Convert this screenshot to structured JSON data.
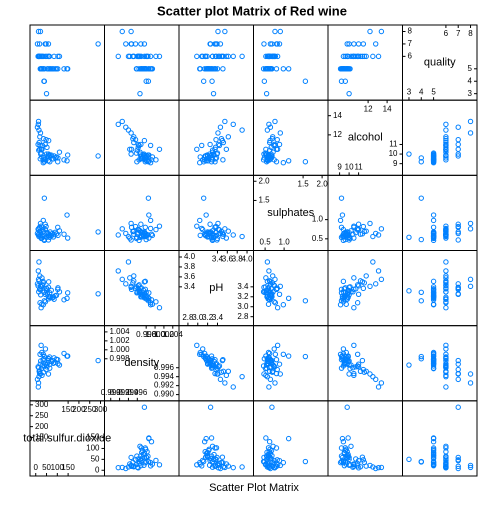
{
  "chart_data": {
    "type": "splom",
    "title": "Scatter plot Matrix of Red wine",
    "x_label": "Scatter Plot Matrix",
    "color": "#0080ff",
    "variables": [
      {
        "name": "total.sulfur.dioxide",
        "lim": [
          -8,
          300
        ],
        "ticks_lower": [
          0,
          50,
          100,
          150
        ],
        "ticks_upper": [
          150,
          200,
          250,
          300
        ],
        "values": [
          34,
          67,
          54,
          60,
          40,
          59,
          21,
          18,
          102,
          65,
          29,
          145,
          148,
          103,
          16,
          11,
          23,
          35,
          82,
          85,
          60,
          110,
          40,
          8,
          14,
          28,
          45,
          19,
          90,
          12,
          38,
          48,
          25,
          72,
          31,
          131,
          52,
          15,
          44,
          26,
          78,
          20,
          289,
          36,
          58,
          13,
          96,
          22,
          50,
          64
        ]
      },
      {
        "name": "density",
        "lim": [
          0.9895,
          1.0045
        ],
        "ticks_lower": [
          {
            "value": 0.99,
            "label": "0.990"
          },
          0.992,
          0.994,
          0.996
        ],
        "ticks_upper": [
          0.998,
          {
            "value": 1,
            "label": "1.000"
          },
          1.002,
          1.004
        ],
        "values": [
          0.9978,
          0.9968,
          0.997,
          0.998,
          0.9964,
          0.9946,
          0.9968,
          0.9947,
          0.9978,
          0.9959,
          0.9943,
          0.9986,
          0.9986,
          0.9969,
          0.9952,
          0.9962,
          0.9975,
          0.999,
          0.997,
          0.9982,
          0.9976,
          0.9966,
          0.9985,
          0.9934,
          0.996,
          0.9994,
          1.0002,
          0.9952,
          0.9972,
          0.9917,
          0.998,
          0.9956,
          1.001,
          0.9974,
          0.9964,
          0.9992,
          0.9962,
          0.994,
          0.9968,
          0.9958,
          0.9976,
          0.999,
          0.9976,
          0.995,
          0.9981,
          0.9926,
          0.9979,
          0.9946,
          0.9966,
          0.9984
        ]
      },
      {
        "name": "pH",
        "lim": [
          2.7,
          4.05
        ],
        "ticks_lower": [
          2.8,
          {
            "value": 3,
            "label": "3.0"
          },
          3.2,
          3.4
        ],
        "ticks_upper": [
          3.4,
          3.6,
          3.8,
          {
            "value": 4,
            "label": "4.0"
          }
        ],
        "values": [
          3.51,
          3.2,
          3.26,
          3.16,
          3.3,
          3.39,
          3.36,
          3.35,
          3.35,
          3.28,
          3.58,
          3.17,
          3.28,
          3.38,
          3.52,
          3.42,
          3.24,
          3.04,
          3.2,
          3.15,
          3.5,
          3.3,
          3.12,
          3.46,
          3.3,
          3.05,
          3.1,
          3.62,
          3.22,
          3.72,
          3.29,
          3.37,
          2.98,
          3.33,
          3.44,
          3.14,
          3.36,
          3.9,
          3.25,
          3.4,
          3.18,
          3.08,
          3.26,
          3.48,
          3.21,
          3.55,
          3.23,
          3.41,
          3.32,
          3.19
        ]
      },
      {
        "name": "sulphates",
        "lim": [
          0.3,
          2.05
        ],
        "ticks_lower": [
          0.5,
          {
            "value": 1,
            "label": "1.0"
          }
        ],
        "ticks_upper": [
          1.5,
          {
            "value": 2,
            "label": "2.0"
          }
        ],
        "values": [
          0.56,
          0.68,
          0.65,
          0.58,
          0.46,
          0.47,
          0.57,
          0.8,
          0.8,
          0.54,
          0.52,
          1.12,
          0.52,
          0.59,
          0.62,
          0.75,
          0.66,
          0.98,
          0.55,
          0.61,
          0.63,
          0.71,
          1.56,
          0.64,
          0.62,
          0.59,
          0.74,
          0.7,
          0.67,
          0.6,
          0.48,
          0.82,
          0.83,
          0.58,
          0.73,
          0.62,
          0.66,
          0.56,
          0.88,
          0.51,
          0.64,
          0.77,
          0.68,
          0.69,
          0.57,
          0.76,
          0.63,
          0.9,
          0.54,
          0.6
        ]
      },
      {
        "name": "alcohol",
        "lim": [
          8.2,
          15.2
        ],
        "ticks_lower": [
          9,
          10,
          11
        ],
        "ticks_upper": [
          12,
          14
        ],
        "values": [
          9.4,
          9.8,
          9.8,
          9.8,
          9.4,
          10,
          9.5,
          10.5,
          9.2,
          9.2,
          10.5,
          9.3,
          9.9,
          9.6,
          11.2,
          11,
          10,
          9.1,
          9.5,
          9.8,
          11.4,
          10.2,
          9.2,
          12.8,
          10.4,
          9.7,
          9.4,
          11.8,
          9.6,
          13.1,
          9.6,
          11.5,
          10.5,
          9.9,
          10.9,
          9.4,
          10.7,
          12.5,
          11,
          10.1,
          9.5,
          10.9,
          9.8,
          11.6,
          9.3,
          13.4,
          9.7,
          12.2,
          10,
          9.9
        ]
      },
      {
        "name": "quality",
        "lim": [
          2.8,
          8.2
        ],
        "ticks_lower": [
          3,
          4,
          5
        ],
        "ticks_upper": [
          6,
          7,
          8
        ],
        "values": [
          5,
          5,
          5,
          6,
          5,
          7,
          5,
          7,
          5,
          5,
          6,
          5,
          5,
          6,
          6,
          6,
          5,
          5,
          5,
          6,
          6,
          6,
          4,
          7,
          6,
          5,
          6,
          6,
          5,
          6,
          4,
          7,
          6,
          5,
          6,
          5,
          6,
          6,
          7,
          5,
          5,
          6,
          7,
          6,
          5,
          8,
          5,
          8,
          3,
          6
        ]
      }
    ]
  }
}
